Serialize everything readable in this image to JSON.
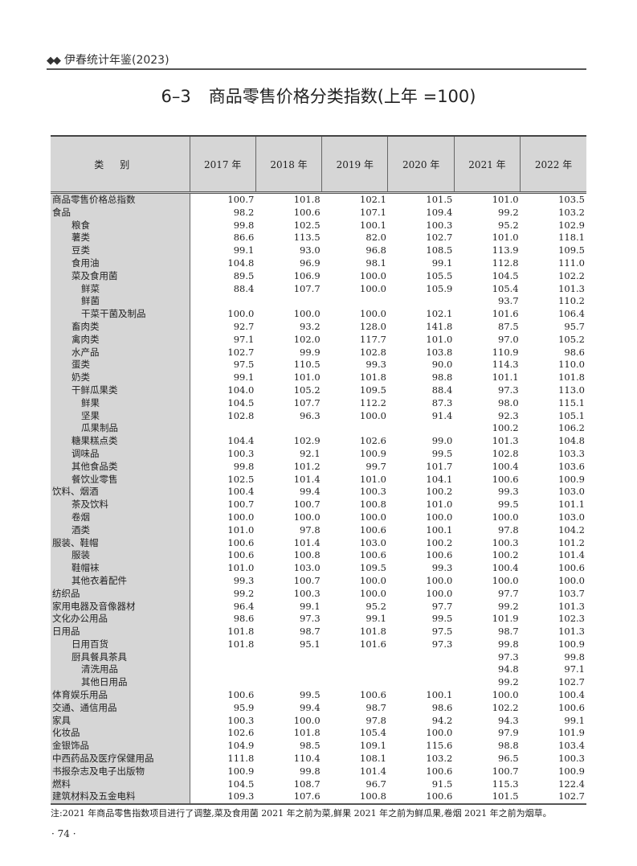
{
  "running_head": {
    "marks": "◆◆",
    "text": "伊春统计年鉴(2023)"
  },
  "title": {
    "number": "6–3",
    "text": "商品零售价格分类指数(上年 =100)"
  },
  "table": {
    "headers": [
      "类别",
      "2017 年",
      "2018 年",
      "2019 年",
      "2020 年",
      "2021 年",
      "2022 年"
    ],
    "rows": [
      {
        "name": "商品零售价格总指数",
        "level": 0,
        "values": [
          "100.7",
          "101.8",
          "102.1",
          "101.5",
          "101.0",
          "103.5"
        ]
      },
      {
        "name": "食品",
        "level": 0,
        "values": [
          "98.2",
          "100.6",
          "107.1",
          "109.4",
          "99.2",
          "103.2"
        ]
      },
      {
        "name": "粮食",
        "level": 1,
        "values": [
          "99.8",
          "102.5",
          "100.1",
          "100.3",
          "95.2",
          "102.9"
        ]
      },
      {
        "name": "薯类",
        "level": 1,
        "values": [
          "86.6",
          "113.5",
          "82.0",
          "102.7",
          "101.0",
          "118.1"
        ]
      },
      {
        "name": "豆类",
        "level": 1,
        "values": [
          "99.1",
          "93.0",
          "96.8",
          "108.5",
          "113.9",
          "109.5"
        ]
      },
      {
        "name": "食用油",
        "level": 1,
        "values": [
          "104.8",
          "96.9",
          "98.1",
          "99.1",
          "112.8",
          "111.0"
        ]
      },
      {
        "name": "菜及食用菌",
        "level": 1,
        "values": [
          "89.5",
          "106.9",
          "100.0",
          "105.5",
          "104.5",
          "102.2"
        ]
      },
      {
        "name": "鲜菜",
        "level": 2,
        "values": [
          "88.4",
          "107.7",
          "100.0",
          "105.9",
          "105.4",
          "101.3"
        ]
      },
      {
        "name": "鲜菌",
        "level": 2,
        "values": [
          "",
          "",
          "",
          "",
          "93.7",
          "110.2"
        ]
      },
      {
        "name": "干菜干菌及制品",
        "level": 2,
        "values": [
          "100.0",
          "100.0",
          "100.0",
          "102.1",
          "101.6",
          "106.4"
        ]
      },
      {
        "name": "畜肉类",
        "level": 1,
        "values": [
          "92.7",
          "93.2",
          "128.0",
          "141.8",
          "87.5",
          "95.7"
        ]
      },
      {
        "name": "禽肉类",
        "level": 1,
        "values": [
          "97.1",
          "102.0",
          "117.7",
          "101.0",
          "97.0",
          "105.2"
        ]
      },
      {
        "name": "水产品",
        "level": 1,
        "values": [
          "102.7",
          "99.9",
          "102.8",
          "103.8",
          "110.9",
          "98.6"
        ]
      },
      {
        "name": "蛋类",
        "level": 1,
        "values": [
          "97.5",
          "110.5",
          "99.3",
          "90.0",
          "114.3",
          "110.0"
        ]
      },
      {
        "name": "奶类",
        "level": 1,
        "values": [
          "99.1",
          "101.0",
          "101.8",
          "98.8",
          "101.1",
          "101.8"
        ]
      },
      {
        "name": "干鲜瓜果类",
        "level": 1,
        "values": [
          "104.0",
          "105.2",
          "109.5",
          "88.4",
          "97.3",
          "113.0"
        ]
      },
      {
        "name": "鲜果",
        "level": 2,
        "values": [
          "104.5",
          "107.7",
          "112.2",
          "87.3",
          "98.0",
          "115.1"
        ]
      },
      {
        "name": "坚果",
        "level": 2,
        "values": [
          "102.8",
          "96.3",
          "100.0",
          "91.4",
          "92.3",
          "105.1"
        ]
      },
      {
        "name": "瓜果制品",
        "level": 2,
        "values": [
          "",
          "",
          "",
          "",
          "100.2",
          "106.2"
        ]
      },
      {
        "name": "糖果糕点类",
        "level": 1,
        "values": [
          "104.4",
          "102.9",
          "102.6",
          "99.0",
          "101.3",
          "104.8"
        ]
      },
      {
        "name": "调味品",
        "level": 1,
        "values": [
          "100.3",
          "92.1",
          "100.9",
          "99.5",
          "102.8",
          "103.3"
        ]
      },
      {
        "name": "其他食品类",
        "level": 1,
        "values": [
          "99.8",
          "101.2",
          "99.7",
          "101.7",
          "100.4",
          "103.6"
        ]
      },
      {
        "name": "餐饮业零售",
        "level": 1,
        "values": [
          "102.5",
          "101.4",
          "101.0",
          "104.1",
          "100.6",
          "100.9"
        ]
      },
      {
        "name": "饮料、烟酒",
        "level": 0,
        "values": [
          "100.4",
          "99.4",
          "100.3",
          "100.2",
          "99.3",
          "103.0"
        ]
      },
      {
        "name": "茶及饮料",
        "level": 1,
        "values": [
          "100.7",
          "100.7",
          "100.8",
          "101.0",
          "99.5",
          "101.1"
        ]
      },
      {
        "name": "卷烟",
        "level": 1,
        "values": [
          "100.0",
          "100.0",
          "100.0",
          "100.0",
          "100.0",
          "103.0"
        ]
      },
      {
        "name": "酒类",
        "level": 1,
        "values": [
          "101.0",
          "97.8",
          "100.6",
          "100.1",
          "97.8",
          "104.2"
        ]
      },
      {
        "name": "服装、鞋帽",
        "level": 0,
        "values": [
          "100.6",
          "101.4",
          "103.0",
          "100.2",
          "100.3",
          "101.2"
        ]
      },
      {
        "name": "服装",
        "level": 1,
        "values": [
          "100.6",
          "100.8",
          "100.6",
          "100.6",
          "100.2",
          "101.4"
        ]
      },
      {
        "name": "鞋帽袜",
        "level": 1,
        "values": [
          "101.0",
          "103.0",
          "109.5",
          "99.3",
          "100.4",
          "100.6"
        ]
      },
      {
        "name": "其他衣着配件",
        "level": 1,
        "values": [
          "99.3",
          "100.7",
          "100.0",
          "100.0",
          "100.0",
          "100.0"
        ]
      },
      {
        "name": "纺织品",
        "level": 0,
        "values": [
          "99.2",
          "100.3",
          "100.0",
          "100.0",
          "97.7",
          "103.7"
        ]
      },
      {
        "name": "家用电器及音像器材",
        "level": 0,
        "values": [
          "96.4",
          "99.1",
          "95.2",
          "97.7",
          "99.2",
          "101.3"
        ]
      },
      {
        "name": "文化办公用品",
        "level": 0,
        "values": [
          "98.6",
          "97.3",
          "99.1",
          "99.5",
          "101.9",
          "102.3"
        ]
      },
      {
        "name": "日用品",
        "level": 0,
        "values": [
          "101.8",
          "98.7",
          "101.8",
          "97.5",
          "98.7",
          "101.3"
        ]
      },
      {
        "name": "日用百货",
        "level": 1,
        "values": [
          "101.8",
          "95.1",
          "101.6",
          "97.3",
          "99.8",
          "100.9"
        ]
      },
      {
        "name": "厨具餐具茶具",
        "level": 1,
        "values": [
          "",
          "",
          "",
          "",
          "97.3",
          "99.8"
        ]
      },
      {
        "name": "清洗用品",
        "level": 2,
        "values": [
          "",
          "",
          "",
          "",
          "94.8",
          "97.1"
        ]
      },
      {
        "name": "其他日用品",
        "level": 2,
        "values": [
          "",
          "",
          "",
          "",
          "99.2",
          "102.7"
        ]
      },
      {
        "name": "体育娱乐用品",
        "level": 0,
        "values": [
          "100.6",
          "99.5",
          "100.6",
          "100.1",
          "100.0",
          "100.4"
        ]
      },
      {
        "name": "交通、通信用品",
        "level": 0,
        "values": [
          "95.9",
          "99.4",
          "98.7",
          "98.6",
          "102.2",
          "100.6"
        ]
      },
      {
        "name": "家具",
        "level": 0,
        "values": [
          "100.3",
          "100.0",
          "97.8",
          "94.2",
          "94.3",
          "99.1"
        ]
      },
      {
        "name": "化妆品",
        "level": 0,
        "values": [
          "102.6",
          "101.8",
          "105.4",
          "100.0",
          "97.9",
          "101.9"
        ]
      },
      {
        "name": "金银饰品",
        "level": 0,
        "values": [
          "104.9",
          "98.5",
          "109.1",
          "115.6",
          "98.8",
          "103.4"
        ]
      },
      {
        "name": "中西药品及医疗保健用品",
        "level": 0,
        "values": [
          "111.8",
          "110.4",
          "108.1",
          "103.2",
          "96.5",
          "100.3"
        ]
      },
      {
        "name": "书报杂志及电子出版物",
        "level": 0,
        "values": [
          "100.9",
          "99.8",
          "101.4",
          "100.6",
          "100.7",
          "100.9"
        ]
      },
      {
        "name": "燃料",
        "level": 0,
        "values": [
          "104.5",
          "108.7",
          "96.7",
          "91.5",
          "115.3",
          "122.4"
        ]
      },
      {
        "name": "建筑材料及五金电料",
        "level": 0,
        "values": [
          "109.3",
          "107.6",
          "100.8",
          "100.6",
          "101.5",
          "102.7"
        ]
      }
    ]
  },
  "note": "注:2021 年商品零售指数项目进行了调整,菜及食用菌 2021 年之前为菜,鲜果 2021 年之前为鲜瓜果,卷烟 2021 年之前为烟草。",
  "page_number": "· 74 ·"
}
